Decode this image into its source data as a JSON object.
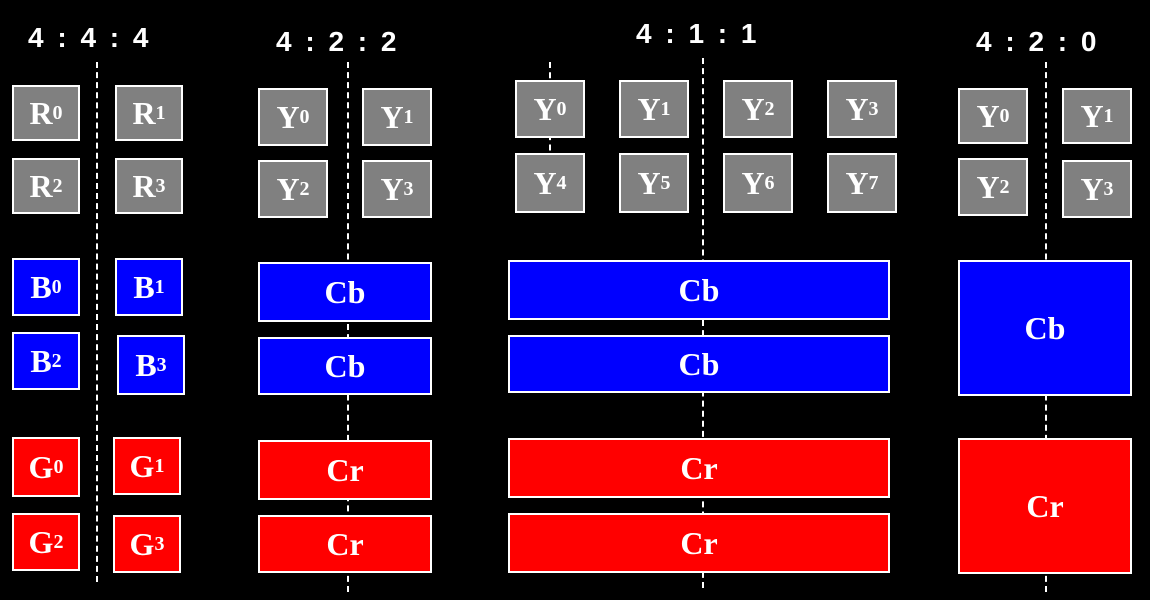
{
  "colors": {
    "luma": "#808080",
    "blue": "#0000ff",
    "red": "#ff0000",
    "background": "#000000",
    "text": "#ffffff"
  },
  "schemes": [
    {
      "title": "4 : 4 : 4",
      "rgb": {
        "R": [
          "R",
          "0",
          "R",
          "1",
          "R",
          "2",
          "R",
          "3"
        ]
      }
    },
    {
      "title": "4 : 2 : 2"
    },
    {
      "title": "4 : 1 : 1"
    },
    {
      "title": "4 : 2 : 0"
    }
  ],
  "labels": {
    "R": "R",
    "B": "B",
    "G": "G",
    "Y": "Y",
    "cb": "Cb",
    "cr": "Cr"
  },
  "subscripts": [
    "0",
    "1",
    "2",
    "3",
    "4",
    "5",
    "6",
    "7"
  ]
}
